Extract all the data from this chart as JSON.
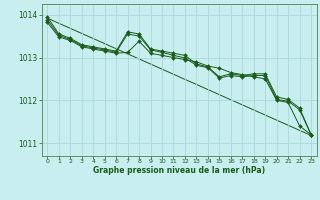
{
  "title": "Graphe pression niveau de la mer (hPa)",
  "background_color": "#c8eef0",
  "grid_color": "#a8d8dc",
  "line_color": "#1a5c1a",
  "marker_color": "#1a5c1a",
  "xlim": [
    -0.5,
    23.5
  ],
  "ylim": [
    1010.7,
    1014.25
  ],
  "yticks": [
    1011,
    1012,
    1013,
    1014
  ],
  "xticks": [
    0,
    1,
    2,
    3,
    4,
    5,
    6,
    7,
    8,
    9,
    10,
    11,
    12,
    13,
    14,
    15,
    16,
    17,
    18,
    19,
    20,
    21,
    22,
    23
  ],
  "series1_x": [
    0,
    1,
    2,
    3,
    4,
    5,
    6,
    7,
    8,
    9,
    10,
    11,
    12,
    13,
    14,
    15,
    16,
    17,
    18,
    19,
    20,
    21,
    22,
    23
  ],
  "series1_y": [
    1013.95,
    1013.55,
    1013.45,
    1013.3,
    1013.25,
    1013.2,
    1013.15,
    1013.6,
    1013.55,
    1013.2,
    1013.15,
    1013.1,
    1013.05,
    1012.85,
    1012.78,
    1012.55,
    1012.62,
    1012.58,
    1012.62,
    1012.62,
    1012.08,
    1012.02,
    1011.82,
    1011.2
  ],
  "series2_x": [
    0,
    1,
    2,
    3,
    4,
    5,
    6,
    7,
    8,
    9,
    10,
    11,
    12,
    13,
    14,
    15,
    16,
    17,
    18,
    19,
    20,
    21,
    22,
    23
  ],
  "series2_y": [
    1013.88,
    1013.52,
    1013.42,
    1013.28,
    1013.22,
    1013.18,
    1013.12,
    1013.55,
    1013.5,
    1013.18,
    1013.12,
    1013.05,
    1012.99,
    1012.82,
    1012.76,
    1012.52,
    1012.58,
    1012.55,
    1012.58,
    1012.58,
    1012.02,
    1011.98,
    1011.78,
    1011.2
  ],
  "series3_x": [
    0,
    1,
    2,
    3,
    4,
    5,
    6,
    7,
    8,
    9,
    10,
    11,
    12,
    13,
    14,
    15,
    16,
    17,
    18,
    19,
    20,
    21,
    22,
    23
  ],
  "series3_y": [
    1013.82,
    1013.48,
    1013.4,
    1013.25,
    1013.2,
    1013.15,
    1013.1,
    1013.12,
    1013.38,
    1013.1,
    1013.05,
    1013.0,
    1012.95,
    1012.9,
    1012.8,
    1012.75,
    1012.65,
    1012.6,
    1012.55,
    1012.5,
    1012.0,
    1011.95,
    1011.4,
    1011.2
  ],
  "trend_x": [
    0,
    23
  ],
  "trend_y": [
    1013.92,
    1011.18
  ]
}
